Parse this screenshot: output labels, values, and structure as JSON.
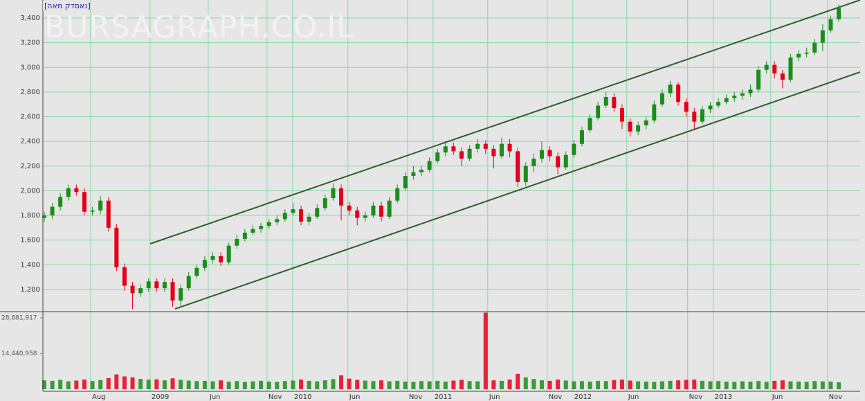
{
  "header": {
    "tag": "[נאסדק מאה]",
    "watermark": "BURSAGRAPH.CO.IL"
  },
  "chart_data": {
    "type": "candlestick",
    "open": [
      1780,
      1800,
      1870,
      1950,
      2020,
      1990,
      1830,
      1840,
      1920,
      1700,
      1380,
      1230,
      1170,
      1210,
      1265,
      1210,
      1260,
      1110,
      1210,
      1310,
      1375,
      1440,
      1470,
      1420,
      1555,
      1610,
      1660,
      1690,
      1715,
      1745,
      1770,
      1820,
      1850,
      1750,
      1790,
      1860,
      1940,
      2020,
      1880,
      1840,
      1780,
      1800,
      1880,
      1790,
      1920,
      2020,
      2120,
      2150,
      2170,
      2240,
      2310,
      2360,
      2320,
      2260,
      2340,
      2380,
      2340,
      2280,
      2380,
      2320,
      2070,
      2200,
      2260,
      2330,
      2280,
      2190,
      2290,
      2380,
      2490,
      2590,
      2690,
      2760,
      2670,
      2560,
      2480,
      2530,
      2570,
      2700,
      2790,
      2860,
      2720,
      2640,
      2560,
      2660,
      2690,
      2720,
      2750,
      2770,
      2790,
      2820,
      2980,
      3020,
      2950,
      2900,
      3080,
      3110,
      3120,
      3200,
      3300,
      3390
    ],
    "high": [
      1830,
      1900,
      1980,
      2050,
      2050,
      2020,
      1870,
      1960,
      1950,
      1730,
      1410,
      1260,
      1240,
      1290,
      1290,
      1290,
      1290,
      1240,
      1340,
      1400,
      1470,
      1500,
      1500,
      1580,
      1640,
      1690,
      1720,
      1740,
      1770,
      1800,
      1850,
      1900,
      1880,
      1820,
      1890,
      1970,
      2060,
      2050,
      1910,
      1870,
      1830,
      1910,
      1910,
      1950,
      2050,
      2150,
      2200,
      2200,
      2270,
      2340,
      2400,
      2390,
      2350,
      2370,
      2420,
      2410,
      2370,
      2430,
      2420,
      2350,
      2230,
      2300,
      2400,
      2360,
      2310,
      2320,
      2410,
      2520,
      2620,
      2720,
      2800,
      2790,
      2700,
      2590,
      2560,
      2600,
      2730,
      2820,
      2890,
      2880,
      2750,
      2670,
      2690,
      2720,
      2750,
      2780,
      2800,
      2820,
      2860,
      3010,
      3050,
      3050,
      2980,
      3110,
      3140,
      3160,
      3230,
      3350,
      3420,
      3510
    ],
    "low": [
      1750,
      1770,
      1840,
      1920,
      1960,
      1800,
      1800,
      1810,
      1670,
      1350,
      1190,
      1040,
      1140,
      1180,
      1180,
      1180,
      1060,
      1070,
      1190,
      1290,
      1350,
      1410,
      1390,
      1400,
      1530,
      1590,
      1640,
      1660,
      1690,
      1720,
      1750,
      1800,
      1720,
      1720,
      1770,
      1840,
      1920,
      1760,
      1800,
      1720,
      1750,
      1780,
      1750,
      1770,
      1900,
      2000,
      2090,
      2120,
      2150,
      2220,
      2280,
      2290,
      2200,
      2240,
      2310,
      2300,
      2180,
      2260,
      2270,
      2030,
      2040,
      2150,
      2230,
      2240,
      2130,
      2170,
      2270,
      2360,
      2470,
      2570,
      2670,
      2640,
      2500,
      2440,
      2450,
      2500,
      2550,
      2680,
      2760,
      2690,
      2600,
      2500,
      2540,
      2630,
      2670,
      2700,
      2720,
      2740,
      2760,
      2800,
      2950,
      2910,
      2830,
      2880,
      3050,
      3080,
      3100,
      3130,
      3280,
      3370
    ],
    "close": [
      1800,
      1870,
      1950,
      2020,
      1990,
      1830,
      1840,
      1920,
      1700,
      1380,
      1230,
      1170,
      1210,
      1265,
      1210,
      1260,
      1110,
      1210,
      1310,
      1375,
      1440,
      1470,
      1420,
      1555,
      1610,
      1660,
      1690,
      1715,
      1745,
      1770,
      1820,
      1850,
      1750,
      1790,
      1860,
      1940,
      2020,
      1880,
      1840,
      1780,
      1800,
      1880,
      1790,
      1920,
      2020,
      2120,
      2150,
      2170,
      2240,
      2310,
      2360,
      2320,
      2260,
      2340,
      2380,
      2340,
      2280,
      2380,
      2320,
      2070,
      2200,
      2260,
      2330,
      2280,
      2190,
      2290,
      2380,
      2490,
      2590,
      2690,
      2760,
      2670,
      2560,
      2480,
      2530,
      2570,
      2700,
      2790,
      2860,
      2720,
      2640,
      2560,
      2660,
      2690,
      2720,
      2750,
      2770,
      2790,
      2820,
      2980,
      3020,
      2950,
      2900,
      3080,
      3110,
      3120,
      3200,
      3300,
      3390,
      3480
    ],
    "up_color": "#1c8c1c",
    "down_color": "#e3001b",
    "grid": true,
    "grid_color": "#86d9a6",
    "xlim": [
      -0.17,
      101.67
    ],
    "xticks": [
      {
        "value": 5.78,
        "label": "Aug"
      },
      {
        "value": 13.19,
        "label": "2009"
      },
      {
        "value": 20.43,
        "label": "Jun"
      },
      {
        "value": 27.76,
        "label": "Nov"
      },
      {
        "value": 30.95,
        "label": "2010"
      },
      {
        "value": 37.84,
        "label": "Jun"
      },
      {
        "value": 45.26,
        "label": "Nov"
      },
      {
        "value": 48.45,
        "label": "2011"
      },
      {
        "value": 55.26,
        "label": "Jun"
      },
      {
        "value": 62.67,
        "label": "Nov"
      },
      {
        "value": 65.86,
        "label": "2012"
      },
      {
        "value": 72.59,
        "label": "Jun"
      },
      {
        "value": 80.17,
        "label": "Nov"
      },
      {
        "value": 83.36,
        "label": "2013"
      },
      {
        "value": 90.52,
        "label": "Jun"
      },
      {
        "value": 97.59,
        "label": "Nov"
      }
    ],
    "ylim": [
      1020,
      3546
    ],
    "yticks": [
      {
        "value": 1200,
        "label": "1,200"
      },
      {
        "value": 1400,
        "label": "1,400"
      },
      {
        "value": 1600,
        "label": "1,600"
      },
      {
        "value": 1800,
        "label": "1,800"
      },
      {
        "value": 2000,
        "label": "2,000"
      },
      {
        "value": 2200,
        "label": "2,200"
      },
      {
        "value": 2400,
        "label": "2,400"
      },
      {
        "value": 2600,
        "label": "2,600"
      },
      {
        "value": 2800,
        "label": "2,800"
      },
      {
        "value": 3000,
        "label": "3,000"
      },
      {
        "value": 3200,
        "label": "3,200"
      },
      {
        "value": 3400,
        "label": "3,400"
      }
    ],
    "volume": {
      "values": [
        3600000,
        3400000,
        3800000,
        3200000,
        3500000,
        3900000,
        3300000,
        3700000,
        4500000,
        6000000,
        5200000,
        4800000,
        4200000,
        3900000,
        4000000,
        3600000,
        4400000,
        3800000,
        3500000,
        3300000,
        3400000,
        3200000,
        3600000,
        3100000,
        3300000,
        3000000,
        3200000,
        3400000,
        3100000,
        3000000,
        3300000,
        3500000,
        3900000,
        3400000,
        3200000,
        3600000,
        4100000,
        5600000,
        4300000,
        3800000,
        3500000,
        3300000,
        3600000,
        3200000,
        3400000,
        3100000,
        3000000,
        3300000,
        3200000,
        3400000,
        3100000,
        3500000,
        3800000,
        3300000,
        3200000,
        31000000,
        3600000,
        3400000,
        3900000,
        6200000,
        4800000,
        4100000,
        3600000,
        3400000,
        3900000,
        3500000,
        3200000,
        3300000,
        3100000,
        3400000,
        3300000,
        3700000,
        3900000,
        3500000,
        3200000,
        3100000,
        3000000,
        3200000,
        3400000,
        3600000,
        3800000,
        3900000,
        3400000,
        3200000,
        3300000,
        3100000,
        3000000,
        3200000,
        3100000,
        3300000,
        3000000,
        3400000,
        3600000,
        3200000,
        3100000,
        3000000,
        3300000,
        3200000,
        3100000,
        2800000
      ],
      "ylim": [
        0,
        31400000
      ],
      "yticks": [
        {
          "value": 14440958,
          "label": "14,440,958"
        },
        {
          "value": 28881917,
          "label": "28,881,917"
        }
      ]
    }
  }
}
